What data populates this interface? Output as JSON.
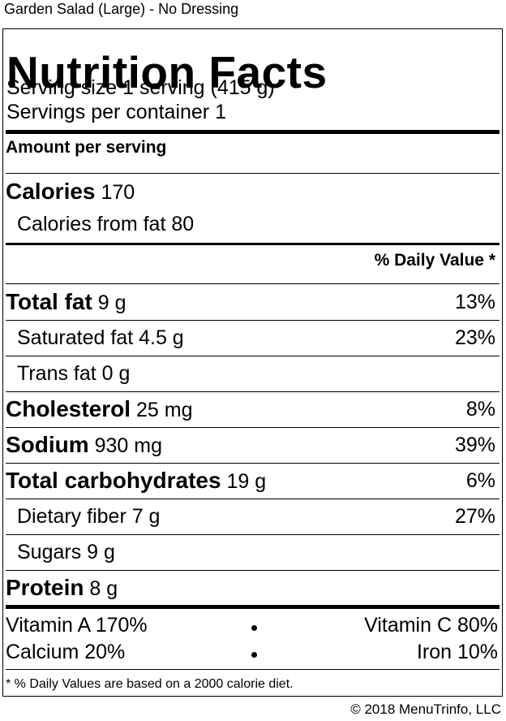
{
  "item_title": "Garden Salad (Large) - No Dressing",
  "label": {
    "heading": "Nutrition Facts",
    "serving_size": "Serving size 1 serving (415 g)",
    "servings_per_container": "Servings per container 1",
    "amount_per_serving": "Amount per serving",
    "calories_label": "Calories",
    "calories_value": "170",
    "calories_from_fat": "Calories from fat 80",
    "daily_value_header": "% Daily Value *",
    "nutrients": [
      {
        "name": "Total fat",
        "amount": "9 g",
        "dv": "13%"
      },
      {
        "name": "Saturated fat 4.5 g",
        "dv": "23%"
      },
      {
        "name": "Trans fat 0 g",
        "dv": ""
      },
      {
        "name": "Cholesterol",
        "amount": "25 mg",
        "dv": "8%"
      },
      {
        "name": "Sodium",
        "amount": "930 mg",
        "dv": "39%"
      },
      {
        "name": "Total carbohydrates",
        "amount": "19 g",
        "dv": "6%"
      },
      {
        "name": "Dietary fiber 7 g",
        "dv": "27%"
      },
      {
        "name": "Sugars 9 g",
        "dv": ""
      },
      {
        "name": "Protein",
        "amount": "8 g",
        "dv": ""
      }
    ],
    "vitamin_a": "Vitamin A 170%",
    "vitamin_c": "Vitamin C 80%",
    "calcium": "Calcium 20%",
    "iron": "Iron 10%",
    "footnote": "* % Daily Values are based on a 2000 calorie diet."
  },
  "copyright": "© 2018 MenuTrinfo, LLC"
}
